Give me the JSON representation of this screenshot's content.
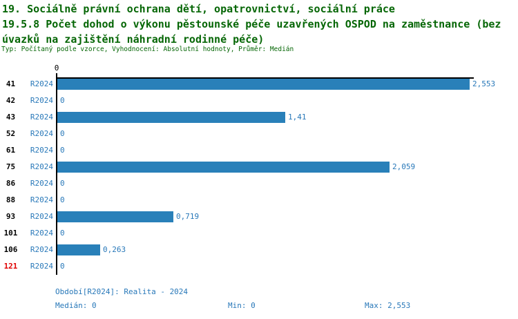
{
  "colors": {
    "title_green": "#056605",
    "text_blue": "#2878b9",
    "bar_blue": "#2980b9",
    "highlight_red": "#e00000",
    "axis_black": "#000000"
  },
  "header": {
    "title_line1": "19. Sociálně právní ochrana dětí, opatrovnictví, sociální práce",
    "title_line2": "19.5.8 Počet dohod o výkonu pěstounské péče uzavřených OSPOD na zaměstnance (bez",
    "title_line3": "úvazků na zajištění náhradní rodinné péče)",
    "meta": "Typ: Počítaný podle vzorce, Vyhodnocení: Absolutní hodnoty, Průměr: Medián"
  },
  "chart_data": {
    "type": "bar",
    "orientation": "horizontal",
    "title": "19.5.8 Počet dohod o výkonu pěstounské péče uzavřených OSPOD na zaměstnance (bez úvazků na zajištění náhradní rodinné péče)",
    "axis_tick_label": "0",
    "period_label": "R2024",
    "categories": [
      "41",
      "42",
      "43",
      "52",
      "61",
      "75",
      "86",
      "88",
      "93",
      "101",
      "106",
      "121"
    ],
    "values": [
      2.553,
      0,
      1.41,
      0,
      0,
      2.059,
      0,
      0,
      0.719,
      0,
      0.263,
      0
    ],
    "value_labels": [
      "2,553",
      "0",
      "1,41",
      "0",
      "0",
      "2,059",
      "0",
      "0",
      "0,719",
      "0",
      "0,263",
      "0"
    ],
    "highlighted_category": "121",
    "xlim": [
      0,
      2.553
    ],
    "grid": false,
    "legend": false
  },
  "footer": {
    "period_line": "Období[R2024]: Realita - 2024",
    "median": "Medián: 0",
    "min": "Min: 0",
    "max": "Max: 2,553"
  }
}
